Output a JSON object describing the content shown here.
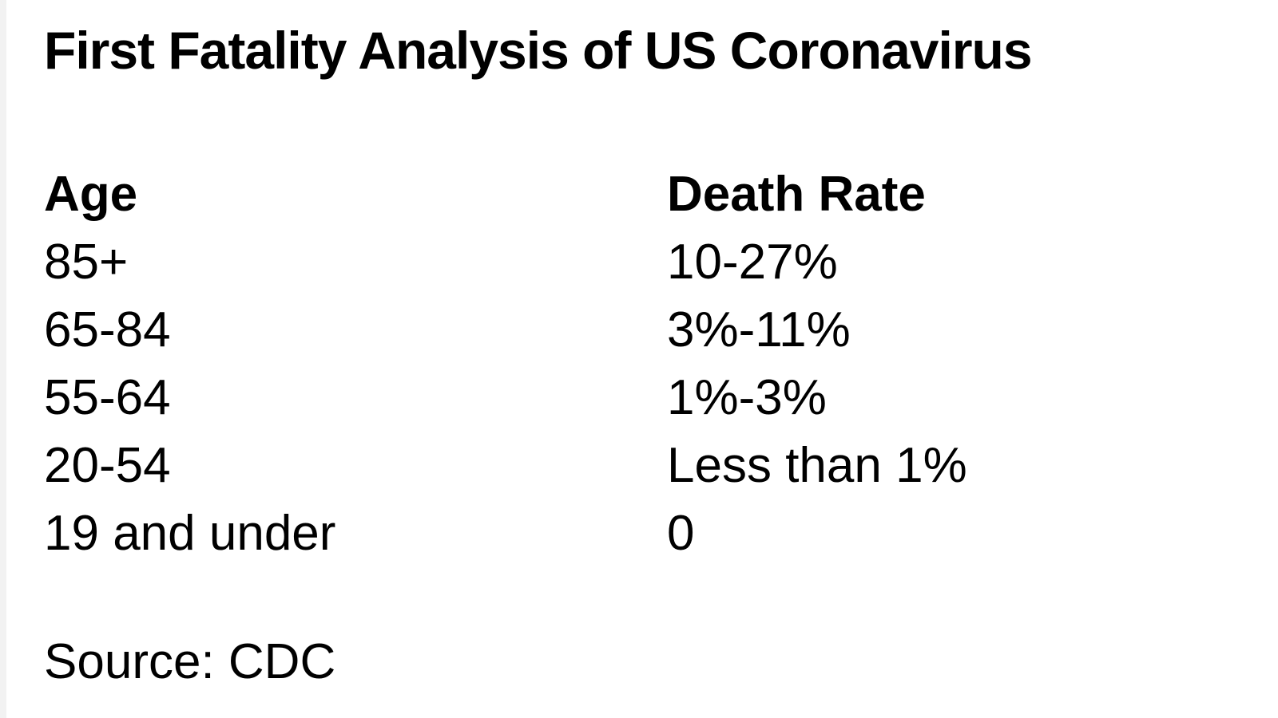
{
  "page": {
    "title": "First Fatality Analysis of US Coronavirus",
    "source": "Source: CDC"
  },
  "table": {
    "headers": {
      "age": "Age",
      "rate": "Death Rate"
    },
    "rows": [
      {
        "age": "85+",
        "rate": "10-27%"
      },
      {
        "age": "65-84",
        "rate": "3%-11%"
      },
      {
        "age": "55-64",
        "rate": "1%-3%"
      },
      {
        "age": "20-54",
        "rate": "Less than 1%"
      },
      {
        "age": "19 and under",
        "rate": "0"
      }
    ]
  },
  "colors": {
    "text": "#000000",
    "background": "#ffffff"
  },
  "chart_data": {
    "type": "table",
    "title": "First Fatality Analysis of US Coronavirus",
    "columns": [
      "Age",
      "Death Rate"
    ],
    "rows": [
      [
        "85+",
        "10-27%"
      ],
      [
        "65-84",
        "3%-11%"
      ],
      [
        "55-64",
        "1%-3%"
      ],
      [
        "20-54",
        "Less than 1%"
      ],
      [
        "19 and under",
        "0"
      ]
    ],
    "source": "Source: CDC"
  }
}
